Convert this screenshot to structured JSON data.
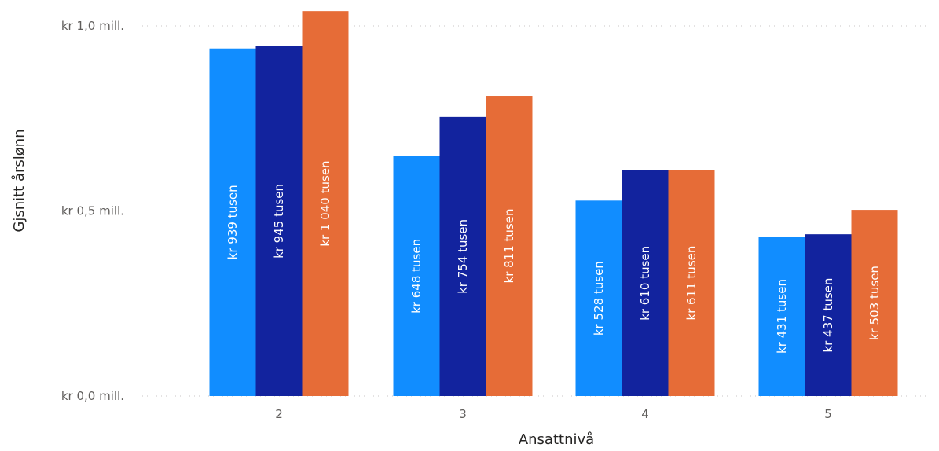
{
  "chart_data": {
    "type": "bar",
    "categories": [
      "2",
      "3",
      "4",
      "5"
    ],
    "series": [
      {
        "values": [
          939000,
          648000,
          528000,
          431000
        ],
        "labels": [
          "kr 939 tusen",
          "kr 648 tusen",
          "kr 528 tusen",
          "kr 431 tusen"
        ],
        "color": "#118dff"
      },
      {
        "values": [
          945000,
          754000,
          610000,
          437000
        ],
        "labels": [
          "kr 945 tusen",
          "kr 754 tusen",
          "kr 610 tusen",
          "kr 437 tusen"
        ],
        "color": "#12239e"
      },
      {
        "values": [
          1040000,
          811000,
          611000,
          503000
        ],
        "labels": [
          "kr 1 040 tusen",
          "kr 811 tusen",
          "kr 611 tusen",
          "kr 503 tusen"
        ],
        "color": "#e66c37"
      }
    ],
    "xlabel": "Ansattnivå",
    "ylabel": "Gjsnitt årslønn",
    "ylim": [
      0,
      1000000
    ],
    "yticks": [
      {
        "value": 0,
        "label": "kr 0,0 mill."
      },
      {
        "value": 500000,
        "label": "kr 0,5 mill."
      },
      {
        "value": 1000000,
        "label": "kr 1,0 mill."
      }
    ],
    "grid": true,
    "legend": "none"
  }
}
